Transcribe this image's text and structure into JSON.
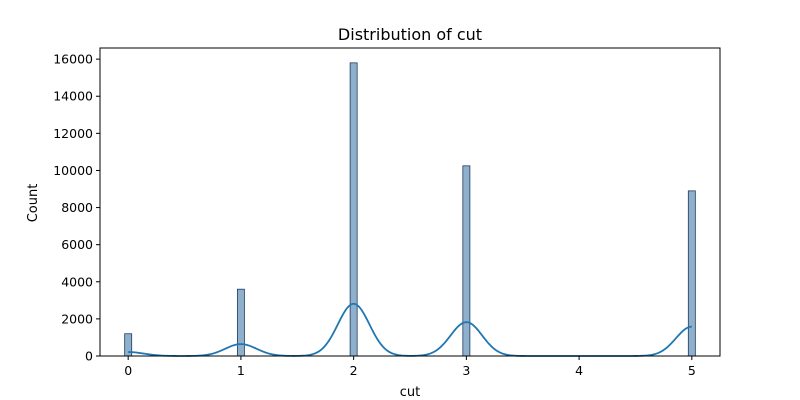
{
  "chart_data": {
    "type": "bar",
    "title": "Distribution of cut",
    "xlabel": "cut",
    "ylabel": "Count",
    "xlim": [
      -0.25,
      5.25
    ],
    "ylim": [
      0,
      16600
    ],
    "xticks": [
      0,
      1,
      2,
      3,
      4,
      5
    ],
    "xtick_labels": [
      "0",
      "1",
      "2",
      "3",
      "4",
      "5"
    ],
    "yticks": [
      0,
      2000,
      4000,
      6000,
      8000,
      10000,
      12000,
      14000,
      16000
    ],
    "ytick_labels": [
      "0",
      "2000",
      "4000",
      "6000",
      "8000",
      "10000",
      "12000",
      "14000",
      "16000"
    ],
    "bin_width": 0.0625,
    "bars": [
      {
        "x": 0,
        "count": 1200
      },
      {
        "x": 1,
        "count": 3600
      },
      {
        "x": 2,
        "count": 15800
      },
      {
        "x": 3,
        "count": 10250
      },
      {
        "x": 5,
        "count": 8900
      }
    ],
    "kde": {
      "bandwidth": 0.14,
      "x_range": [
        0,
        5
      ]
    },
    "grid": false,
    "colors": {
      "bar_fill": "#8fb0cc",
      "bar_edge": "#1f3a5f",
      "kde_line": "#1f77b4"
    }
  }
}
